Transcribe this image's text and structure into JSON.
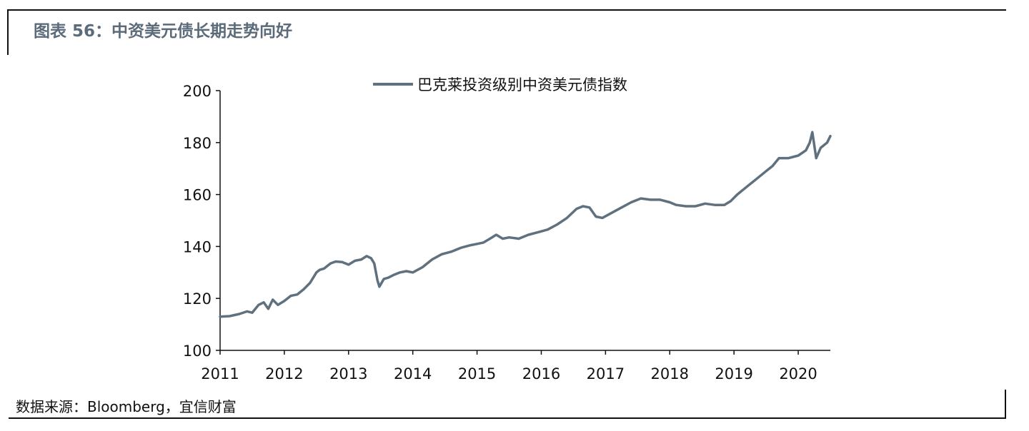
{
  "title": "图表 56：中资美元债长期走势向好",
  "source": "数据来源：Bloomberg，宜信财富",
  "chart_data": {
    "type": "line",
    "title": "",
    "xlabel": "",
    "ylabel": "",
    "xlim": [
      2011,
      2020.5
    ],
    "ylim": [
      100,
      200
    ],
    "yticks": [
      100,
      120,
      140,
      160,
      180,
      200
    ],
    "xticks": [
      2011,
      2012,
      2013,
      2014,
      2015,
      2016,
      2017,
      2018,
      2019,
      2020
    ],
    "grid": false,
    "legend": "top-center",
    "line_color": "#5f707e",
    "series": [
      {
        "name": "巴克莱投资级别中资美元债指数",
        "x": [
          2011.0,
          2011.15,
          2011.3,
          2011.42,
          2011.5,
          2011.6,
          2011.68,
          2011.75,
          2011.82,
          2011.9,
          2012.0,
          2012.1,
          2012.2,
          2012.3,
          2012.4,
          2012.5,
          2012.55,
          2012.62,
          2012.72,
          2012.8,
          2012.9,
          2013.0,
          2013.1,
          2013.2,
          2013.28,
          2013.35,
          2013.4,
          2013.45,
          2013.48,
          2013.55,
          2013.62,
          2013.7,
          2013.8,
          2013.9,
          2014.0,
          2014.15,
          2014.3,
          2014.45,
          2014.6,
          2014.75,
          2014.9,
          2015.0,
          2015.1,
          2015.2,
          2015.3,
          2015.4,
          2015.5,
          2015.65,
          2015.8,
          2015.95,
          2016.1,
          2016.25,
          2016.4,
          2016.55,
          2016.65,
          2016.75,
          2016.85,
          2016.95,
          2017.1,
          2017.25,
          2017.4,
          2017.55,
          2017.7,
          2017.85,
          2018.0,
          2018.1,
          2018.25,
          2018.4,
          2018.55,
          2018.7,
          2018.85,
          2018.95,
          2019.05,
          2019.2,
          2019.35,
          2019.5,
          2019.6,
          2019.7,
          2019.85,
          2020.0,
          2020.12,
          2020.18,
          2020.22,
          2020.28,
          2020.35,
          2020.45,
          2020.5
        ],
        "values": [
          113,
          113.2,
          114,
          115,
          114.5,
          117.5,
          118.5,
          116,
          119.5,
          117.5,
          119,
          121,
          121.5,
          123.5,
          126,
          130,
          131,
          131.5,
          133.5,
          134.2,
          134,
          133,
          134.5,
          135,
          136.3,
          135.5,
          133.5,
          127,
          124.5,
          127.5,
          128,
          129,
          130,
          130.5,
          130,
          132,
          135,
          137,
          138,
          139.5,
          140.5,
          141,
          141.5,
          143,
          144.5,
          143,
          143.5,
          143,
          144.5,
          145.5,
          146.5,
          148.5,
          151,
          154.5,
          155.5,
          155,
          151.5,
          151,
          153,
          155,
          157,
          158.5,
          158,
          158,
          157,
          156,
          155.5,
          155.5,
          156.5,
          156,
          156,
          157.5,
          160,
          163,
          166,
          169,
          171,
          174,
          174,
          175,
          177,
          180,
          184,
          174,
          178,
          180,
          182.5
        ]
      }
    ]
  }
}
